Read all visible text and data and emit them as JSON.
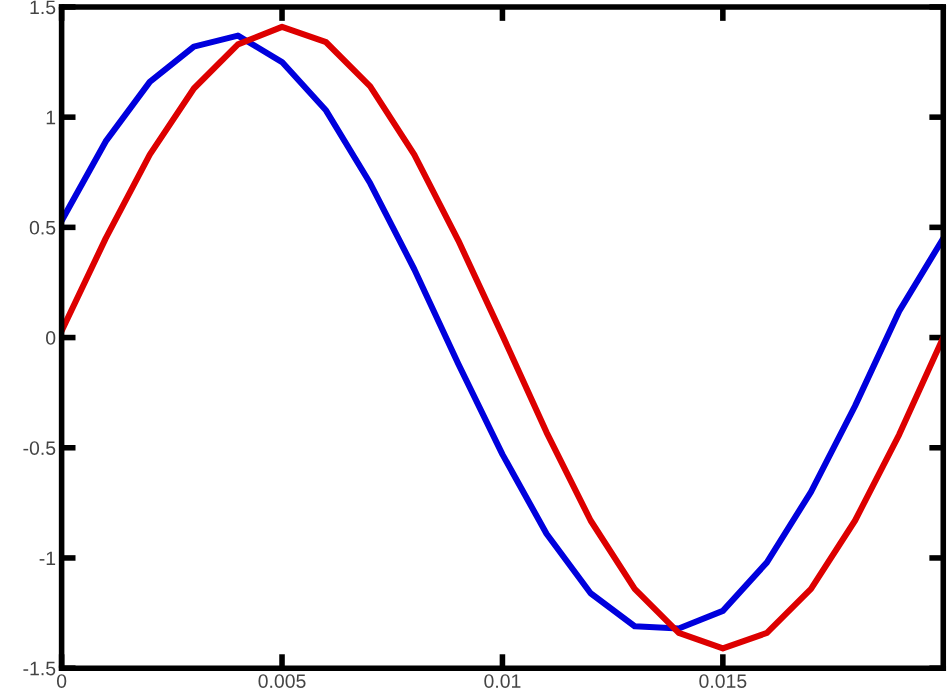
{
  "chart_data": {
    "type": "line",
    "x": [
      0,
      0.001,
      0.002,
      0.003,
      0.004,
      0.005,
      0.006,
      0.007,
      0.008,
      0.009,
      0.01,
      0.011,
      0.012,
      0.013,
      0.014,
      0.015,
      0.016,
      0.017,
      0.018,
      0.019,
      0.02
    ],
    "series": [
      {
        "color": "#0000dd",
        "values": [
          0.53,
          0.89,
          1.16,
          1.32,
          1.37,
          1.25,
          1.03,
          0.7,
          0.31,
          -0.12,
          -0.53,
          -0.89,
          -1.16,
          -1.31,
          -1.32,
          -1.24,
          -1.02,
          -0.7,
          -0.31,
          0.12,
          0.45
        ]
      },
      {
        "color": "#dd0000",
        "values": [
          0.03,
          0.45,
          0.83,
          1.13,
          1.33,
          1.41,
          1.34,
          1.14,
          0.83,
          0.44,
          0.01,
          -0.43,
          -0.83,
          -1.14,
          -1.34,
          -1.41,
          -1.34,
          -1.14,
          -0.83,
          -0.44,
          0.0
        ]
      }
    ],
    "xlim": [
      0,
      0.02
    ],
    "ylim": [
      -1.5,
      1.5
    ],
    "xticks": [
      0,
      0.005,
      0.01,
      0.015
    ],
    "yticks": [
      -1.5,
      -1,
      -0.5,
      0,
      0.5,
      1,
      1.5
    ],
    "grid": false,
    "legend": false,
    "marker": "none",
    "line_style": "solid"
  }
}
